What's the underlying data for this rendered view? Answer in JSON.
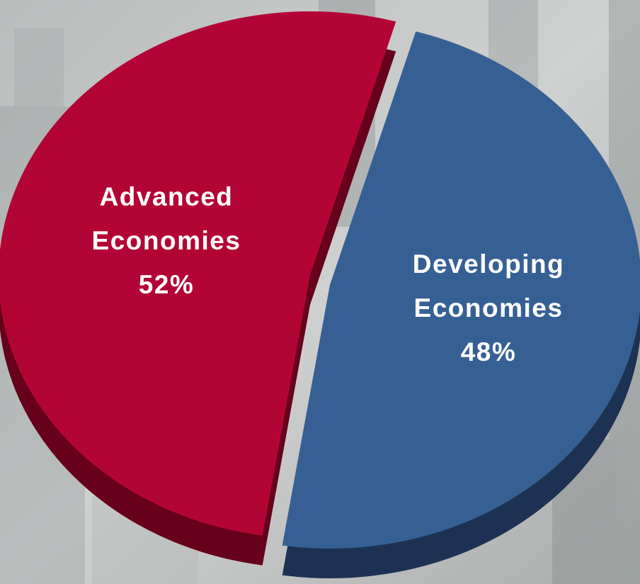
{
  "chart_data": {
    "type": "pie",
    "categories": [
      "Advanced Economies",
      "Developing Economies"
    ],
    "values": [
      52,
      48
    ],
    "value_labels": [
      "52%",
      "48%"
    ],
    "colors": [
      "#b30535",
      "#366094"
    ],
    "depth_colors": [
      "#66001b",
      "#1d3253"
    ]
  }
}
